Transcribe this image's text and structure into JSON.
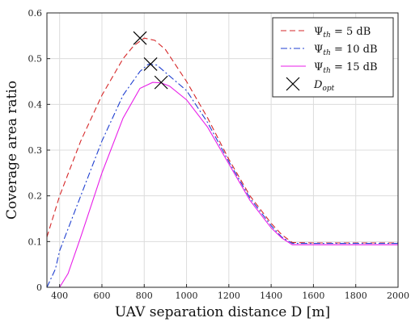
{
  "chart_data": {
    "type": "line",
    "title": "",
    "xlabel": "UAV separation distance D [m]",
    "ylabel": "Coverage area ratio",
    "xlim": [
      340,
      2000
    ],
    "ylim": [
      0,
      0.6
    ],
    "xticks": [
      400,
      600,
      800,
      1000,
      1200,
      1400,
      1600,
      1800,
      2000
    ],
    "yticks": [
      0,
      0.1,
      0.2,
      0.3,
      0.4,
      0.5,
      0.6
    ],
    "grid": true,
    "legend_position": "top-right",
    "series": [
      {
        "name": "Ψth = 5 dB",
        "legend": {
          "symbol": "Ψ",
          "sub": "th",
          "rest": " = 5 dB"
        },
        "color": "#d62728",
        "dash": "7,4",
        "x": [
          340,
          400,
          500,
          600,
          700,
          750,
          800,
          850,
          900,
          1000,
          1100,
          1200,
          1300,
          1400,
          1450,
          1500,
          1600,
          1800,
          2000
        ],
        "y": [
          0.11,
          0.2,
          0.32,
          0.42,
          0.5,
          0.528,
          0.545,
          0.54,
          0.52,
          0.45,
          0.37,
          0.28,
          0.2,
          0.14,
          0.115,
          0.098,
          0.097,
          0.097,
          0.097
        ]
      },
      {
        "name": "Ψth = 10 dB",
        "legend": {
          "symbol": "Ψ",
          "sub": "th",
          "rest": " = 10 dB"
        },
        "color": "#1f3fd0",
        "dash": "8,3,2,3",
        "x": [
          340,
          380,
          400,
          500,
          600,
          700,
          780,
          820,
          860,
          900,
          1000,
          1100,
          1200,
          1300,
          1400,
          1450,
          1500,
          1600,
          1800,
          2000
        ],
        "y": [
          0.0,
          0.04,
          0.08,
          0.2,
          0.32,
          0.42,
          0.472,
          0.488,
          0.486,
          0.47,
          0.43,
          0.36,
          0.275,
          0.195,
          0.135,
          0.11,
          0.096,
          0.096,
          0.096,
          0.096
        ]
      },
      {
        "name": "Ψth = 15 dB",
        "legend": {
          "symbol": "Ψ",
          "sub": "th",
          "rest": " = 15 dB"
        },
        "color": "#e81ee8",
        "dash": "",
        "x": [
          340,
          400,
          440,
          500,
          600,
          700,
          780,
          840,
          880,
          920,
          1000,
          1100,
          1200,
          1300,
          1400,
          1450,
          1500,
          1600,
          1800,
          2000
        ],
        "y": [
          0.0,
          0.0,
          0.03,
          0.11,
          0.25,
          0.37,
          0.435,
          0.448,
          0.447,
          0.44,
          0.41,
          0.35,
          0.27,
          0.19,
          0.13,
          0.108,
          0.093,
          0.093,
          0.093,
          0.093
        ]
      }
    ],
    "markers": {
      "name": "Dopt",
      "legend": {
        "symbol": "D",
        "sub": "opt",
        "rest": ""
      },
      "symbol": "x",
      "color": "#000000",
      "points": [
        {
          "x": 780,
          "y": 0.545
        },
        {
          "x": 830,
          "y": 0.488
        },
        {
          "x": 880,
          "y": 0.448
        }
      ]
    }
  }
}
